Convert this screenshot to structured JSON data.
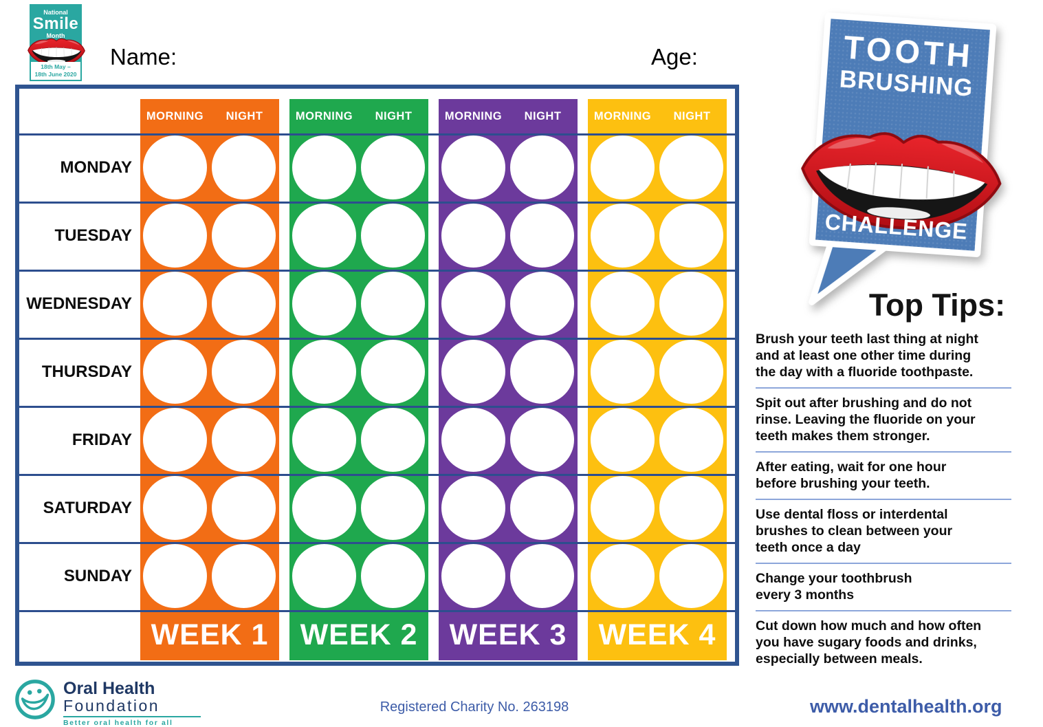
{
  "smile_logo": {
    "line1": "National",
    "line2": "Smile",
    "line3": "Month",
    "dates": "18th May –\n18th June 2020",
    "teal": "#2AA7A1"
  },
  "header": {
    "name_label": "Name:",
    "age_label": "Age:"
  },
  "chart": {
    "border_color": "#2F5490",
    "line_color": "#2D4E8E",
    "subheaders": {
      "morning": "MORNING",
      "night": "NIGHT"
    },
    "days": [
      "MONDAY",
      "TUESDAY",
      "WEDNESDAY",
      "THURSDAY",
      "FRIDAY",
      "SATURDAY",
      "SUNDAY"
    ],
    "columns": [
      {
        "label": "WEEK 1",
        "color": "#F26D15"
      },
      {
        "label": "WEEK 2",
        "color": "#1FA84E"
      },
      {
        "label": "WEEK 3",
        "color": "#6C3A9C"
      },
      {
        "label": "WEEK 4",
        "color": "#FDC010"
      }
    ],
    "slots_per_day": [
      "morning",
      "night"
    ]
  },
  "badge": {
    "line1": "TOOTH",
    "line2": "BRUSHING",
    "line3": "CHALLENGE",
    "bg_color": "#4d7cb7",
    "lips_red": "#D8161C"
  },
  "tips": {
    "title": "Top Tips:",
    "items": [
      "Brush your teeth last thing at night\nand at least one other time during\nthe day with a fluoride toothpaste.",
      "Spit out after brushing and do not\nrinse. Leaving the fluoride on your\nteeth makes them stronger.",
      "After eating, wait for one hour\nbefore brushing your teeth.",
      "Use dental floss or interdental\nbrushes to clean between your\nteeth once a day",
      "Change your toothbrush\nevery 3 months",
      "Cut down how much and how often\nyou have sugary foods and drinks,\nespecially between meals."
    ],
    "divider_color": "#8CA6DA"
  },
  "footer": {
    "org_line1": "Oral Health",
    "org_line2": "Foundation",
    "tagline": "Better oral health for all",
    "charity": "Registered Charity No. 263198",
    "website": "www.dentalhealth.org",
    "navy": "#1F3864",
    "blue": "#3D5CA8"
  }
}
